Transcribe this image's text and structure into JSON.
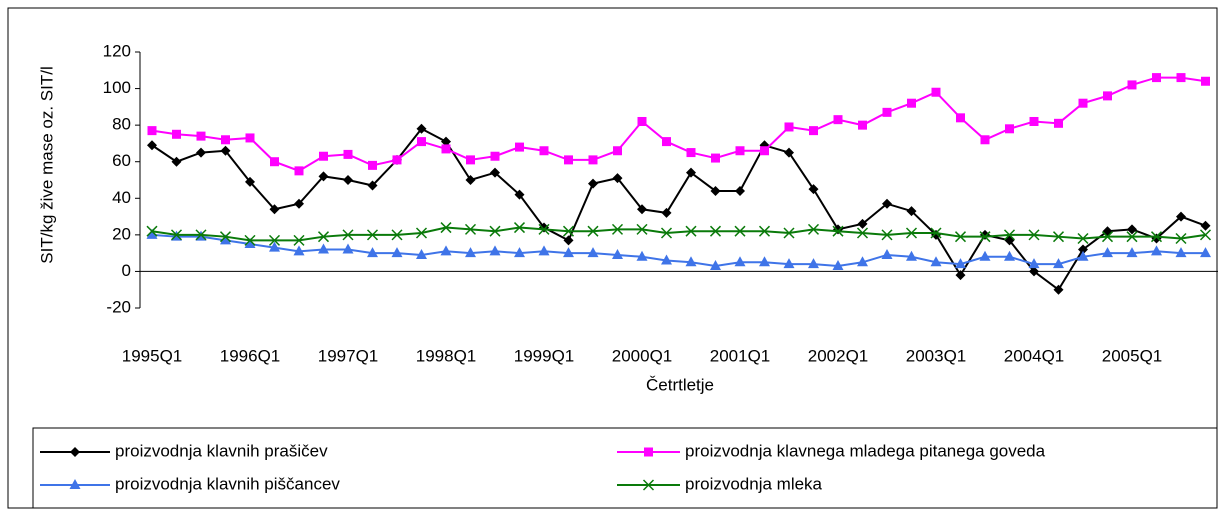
{
  "chart_data": {
    "type": "line",
    "y_axis_label": "SIT/kg žive mase oz. SIT/l",
    "x_axis_label": "Četrtletje",
    "categories": [
      "1995Q1",
      null,
      null,
      null,
      "1996Q1",
      null,
      null,
      null,
      "1997Q1",
      null,
      null,
      null,
      "1998Q1",
      null,
      null,
      null,
      "1999Q1",
      null,
      null,
      null,
      "2000Q1",
      null,
      null,
      null,
      "2001Q1",
      null,
      null,
      null,
      "2002Q1",
      null,
      null,
      null,
      "2003Q1",
      null,
      null,
      null,
      "2004Q1",
      null,
      null,
      null,
      "2005Q1",
      null,
      null,
      null
    ],
    "series": [
      {
        "name": "proizvodnja klavnih prašičev",
        "color": "#000000",
        "marker": "diamond",
        "values": [
          69,
          60,
          65,
          66,
          49,
          34,
          37,
          52,
          50,
          47,
          61,
          78,
          71,
          50,
          54,
          42,
          24,
          17,
          48,
          51,
          34,
          32,
          54,
          44,
          44,
          69,
          65,
          45,
          23,
          26,
          37,
          33,
          20,
          -2,
          20,
          17,
          0,
          -10,
          12,
          22,
          23,
          18,
          30,
          25
        ]
      },
      {
        "name": "proizvodnja klavnega mladega pitanega goveda",
        "color": "#ff00ff",
        "marker": "square",
        "values": [
          77,
          75,
          74,
          72,
          73,
          60,
          55,
          63,
          64,
          58,
          61,
          71,
          67,
          61,
          63,
          68,
          66,
          61,
          61,
          66,
          82,
          71,
          65,
          62,
          66,
          66,
          79,
          77,
          83,
          80,
          87,
          92,
          98,
          84,
          72,
          78,
          82,
          81,
          92,
          96,
          102,
          106,
          106,
          104
        ]
      },
      {
        "name": "proizvodnja klavnih piščancev",
        "color": "#3f74e8",
        "marker": "triangle",
        "values": [
          20,
          19,
          19,
          17,
          15,
          13,
          11,
          12,
          12,
          10,
          10,
          9,
          11,
          10,
          11,
          10,
          11,
          10,
          10,
          9,
          8,
          6,
          5,
          3,
          5,
          5,
          4,
          4,
          3,
          5,
          9,
          8,
          5,
          4,
          8,
          8,
          4,
          4,
          8,
          10,
          10,
          11,
          10,
          10
        ]
      },
      {
        "name": "proizvodnja mleka",
        "color": "#0a7a0a",
        "marker": "x",
        "values": [
          22,
          20,
          20,
          19,
          17,
          17,
          17,
          19,
          20,
          20,
          20,
          21,
          24,
          23,
          22,
          24,
          23,
          22,
          22,
          23,
          23,
          21,
          22,
          22,
          22,
          22,
          21,
          23,
          22,
          21,
          20,
          21,
          21,
          19,
          19,
          20,
          20,
          19,
          18,
          19,
          19,
          19,
          18,
          20
        ]
      }
    ],
    "ylim": [
      -20,
      120
    ],
    "yticks": [
      -20,
      0,
      20,
      40,
      60,
      80,
      100,
      120
    ],
    "legend": "bottom",
    "grid": false
  }
}
